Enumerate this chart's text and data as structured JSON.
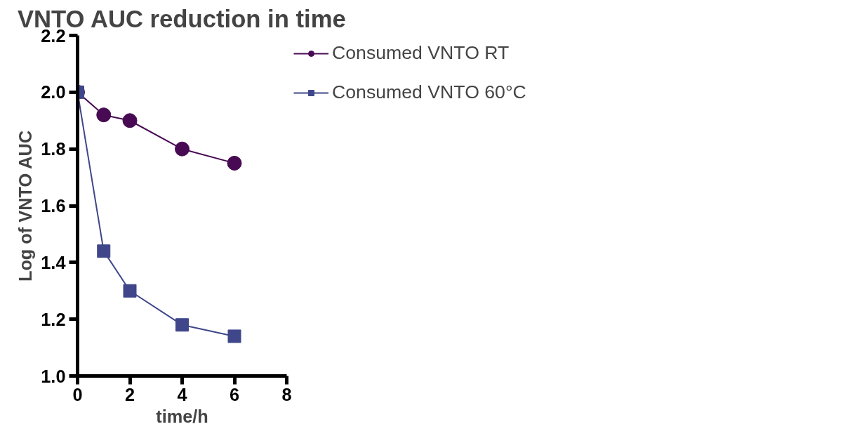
{
  "chart_data": {
    "type": "line",
    "title": "VNTO AUC reduction in time",
    "xlabel": "time/h",
    "ylabel": "Log of VNTO AUC",
    "x": [
      0,
      1,
      2,
      4,
      6
    ],
    "series": [
      {
        "name": "Consumed VNTO RT",
        "color": "#480a52",
        "marker": "circle",
        "values": [
          2.0,
          1.92,
          1.9,
          1.8,
          1.75
        ]
      },
      {
        "name": "Consumed VNTO 60°C",
        "color": "#3f4689",
        "marker": "square",
        "values": [
          2.0,
          1.44,
          1.3,
          1.18,
          1.14
        ]
      }
    ],
    "xlim": [
      0,
      8
    ],
    "xticks": [
      0,
      2,
      4,
      6,
      8
    ],
    "ylim": [
      1.0,
      2.2
    ],
    "yticks": [
      {
        "value": 1.0,
        "label": "1.0"
      },
      {
        "value": 1.2,
        "label": "1.2"
      },
      {
        "value": 1.4,
        "label": "1.4"
      },
      {
        "value": 1.6,
        "label": "1.6"
      },
      {
        "value": 1.8,
        "label": "1.8"
      },
      {
        "value": 2.0,
        "label": "2.0"
      },
      {
        "value": 2.2,
        "label": "2.2"
      }
    ],
    "grid": false,
    "legend": "right",
    "line_style": "solid"
  }
}
